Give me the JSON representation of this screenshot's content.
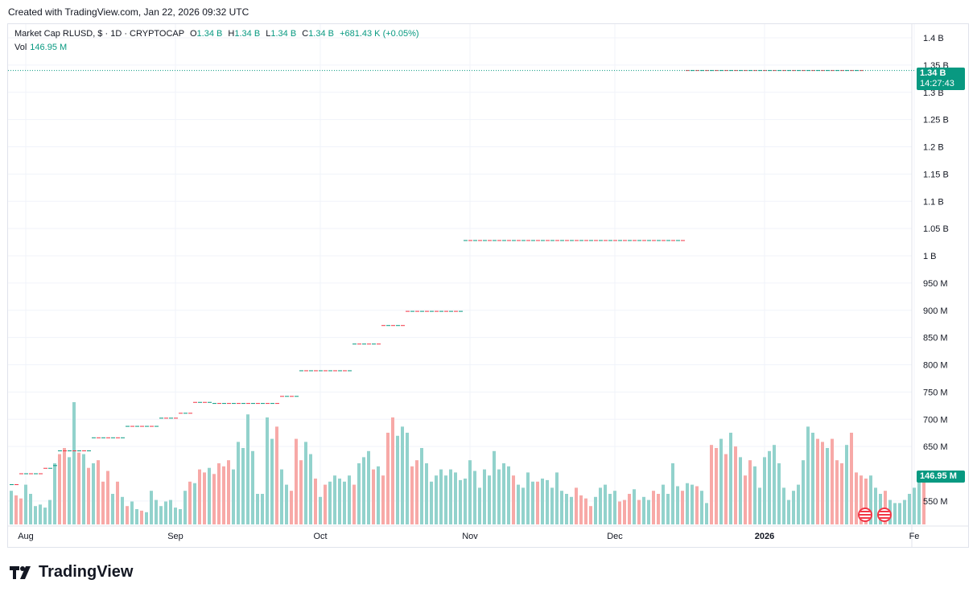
{
  "header": {
    "created": "Created with TradingView.com, Jan 22, 2026 09:32 UTC"
  },
  "legend": {
    "title": "Market Cap RLUSD, $ · 1D · CRYPTOCAP",
    "o_label": "O",
    "o_value": "1.34 B",
    "h_label": "H",
    "h_value": "1.34 B",
    "l_label": "L",
    "l_value": "1.34 B",
    "c_label": "C",
    "c_value": "1.34 B",
    "change": "+681.43 K (+0.05%)",
    "vol_label": "Vol",
    "vol_value": "146.95 M"
  },
  "price_tag": {
    "value": "1.34 B",
    "countdown": "14:27:43"
  },
  "volume_tag": {
    "value": "146.95 M"
  },
  "branding": {
    "logo_text": "TradingView"
  },
  "colors": {
    "up": "#089981",
    "down": "#f23645",
    "up_vol": "#92d2cc",
    "down_vol": "#f7a9a7"
  },
  "chart_data": {
    "type": "candlestick",
    "title": "Market Cap RLUSD",
    "y_axis": {
      "ticks": [
        "1.4 B",
        "1.35 B",
        "1.3 B",
        "1.25 B",
        "1.2 B",
        "1.15 B",
        "1.1 B",
        "1.05 B",
        "1 B",
        "950 M",
        "900 M",
        "850 M",
        "800 M",
        "750 M",
        "700 M",
        "650 M",
        "550 M"
      ],
      "tick_values": [
        1400,
        1350,
        1300,
        1250,
        1200,
        1150,
        1100,
        1050,
        1000,
        950,
        900,
        850,
        800,
        750,
        700,
        650,
        550
      ],
      "unit": "M"
    },
    "x_axis": {
      "ticks": [
        "Aug",
        "Sep",
        "Oct",
        "Nov",
        "Dec",
        "2026",
        "Fe"
      ],
      "tick_days": [
        0,
        31,
        61,
        92,
        122,
        153,
        184
      ],
      "start_date": "2025-07-31",
      "end_date": "2026-01-22"
    },
    "current_price": 1340,
    "market_cap_segments": [
      {
        "from_day": 0,
        "to_day": 2,
        "value": 580
      },
      {
        "from_day": 2,
        "to_day": 7,
        "value": 600
      },
      {
        "from_day": 7,
        "to_day": 9,
        "value": 610
      },
      {
        "from_day": 9,
        "to_day": 10,
        "value": 615
      },
      {
        "from_day": 10,
        "to_day": 17,
        "value": 642
      },
      {
        "from_day": 17,
        "to_day": 24,
        "value": 666
      },
      {
        "from_day": 24,
        "to_day": 31,
        "value": 687
      },
      {
        "from_day": 31,
        "to_day": 35,
        "value": 702
      },
      {
        "from_day": 35,
        "to_day": 38,
        "value": 711
      },
      {
        "from_day": 38,
        "to_day": 42,
        "value": 731
      },
      {
        "from_day": 42,
        "to_day": 56,
        "value": 729
      },
      {
        "from_day": 56,
        "to_day": 60,
        "value": 742
      },
      {
        "from_day": 60,
        "to_day": 71,
        "value": 789
      },
      {
        "from_day": 71,
        "to_day": 77,
        "value": 838
      },
      {
        "from_day": 77,
        "to_day": 82,
        "value": 872
      },
      {
        "from_day": 82,
        "to_day": 94,
        "value": 898
      },
      {
        "from_day": 94,
        "to_day": 140,
        "value": 1028
      },
      {
        "from_day": 140,
        "to_day": 177,
        "value": 1340
      }
    ],
    "volume_m": [
      110,
      95,
      85,
      130,
      100,
      60,
      65,
      55,
      80,
      200,
      230,
      250,
      220,
      400,
      235,
      230,
      185,
      200,
      210,
      140,
      175,
      100,
      140,
      90,
      60,
      75,
      50,
      45,
      40,
      110,
      80,
      60,
      75,
      80,
      55,
      50,
      110,
      140,
      135,
      180,
      170,
      185,
      165,
      200,
      190,
      210,
      180,
      270,
      250,
      360,
      240,
      100,
      100,
      350,
      280,
      320,
      180,
      130,
      110,
      280,
      210,
      270,
      230,
      150,
      90,
      130,
      140,
      160,
      150,
      140,
      160,
      130,
      200,
      220,
      240,
      180,
      190,
      160,
      300,
      350,
      290,
      320,
      300,
      190,
      210,
      250,
      200,
      140,
      160,
      180,
      160,
      180,
      170,
      145,
      150,
      210,
      175,
      120,
      180,
      160,
      240,
      180,
      200,
      190,
      160,
      130,
      120,
      170,
      140,
      140,
      150,
      145,
      120,
      170,
      110,
      100,
      90,
      120,
      95,
      85,
      60,
      90,
      120,
      130,
      100,
      110,
      75,
      80,
      100,
      115,
      80,
      90,
      80,
      110,
      100,
      130,
      100,
      200,
      125,
      110,
      135,
      130,
      125,
      110,
      70,
      260,
      250,
      280,
      230,
      300,
      255,
      220,
      160,
      210,
      190,
      120,
      220,
      240,
      260,
      200,
      120,
      80,
      110,
      130,
      210,
      320,
      300,
      280,
      270,
      250,
      280,
      210,
      200,
      260,
      300,
      170,
      160,
      150,
      160,
      120,
      100,
      110,
      80,
      70,
      70,
      80,
      100,
      120,
      140,
      147
    ],
    "volume_colors": "mixed up/down per day"
  }
}
